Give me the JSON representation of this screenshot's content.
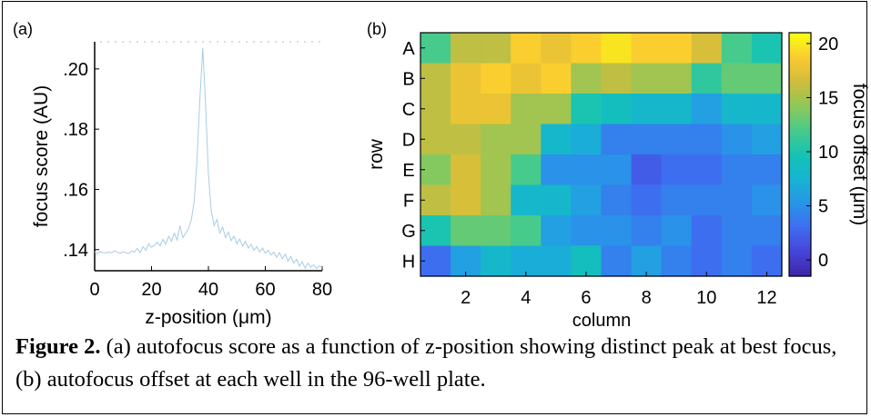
{
  "chart_data": [
    {
      "panel": "(a)",
      "type": "line",
      "xlabel": "z-position (μm)",
      "ylabel": "focus score (AU)",
      "xlim": [
        0,
        80
      ],
      "ylim": [
        0.133,
        0.209
      ],
      "xticks": [
        0,
        20,
        40,
        60,
        80
      ],
      "xtick_labels": [
        "0",
        "20",
        "40",
        "60",
        "80"
      ],
      "yticks": [
        0.14,
        0.16,
        0.18,
        0.2
      ],
      "ytick_labels": [
        ".14",
        ".16",
        ".18",
        ".20"
      ],
      "line_color": "#a9cce3",
      "x": [
        0,
        1,
        2,
        3,
        4,
        5,
        6,
        7,
        8,
        9,
        10,
        11,
        12,
        13,
        14,
        15,
        16,
        17,
        18,
        19,
        20,
        21,
        22,
        23,
        24,
        25,
        26,
        27,
        28,
        29,
        30,
        31,
        32,
        33,
        34,
        35,
        36,
        37,
        38,
        39,
        40,
        41,
        42,
        43,
        44,
        45,
        46,
        47,
        48,
        49,
        50,
        51,
        52,
        53,
        54,
        55,
        56,
        57,
        58,
        59,
        60,
        61,
        62,
        63,
        64,
        65,
        66,
        67,
        68,
        69,
        70,
        71,
        72,
        73,
        74,
        75,
        76,
        77,
        78,
        79,
        80
      ],
      "y": [
        0.1392,
        0.1387,
        0.1393,
        0.139,
        0.1389,
        0.1392,
        0.139,
        0.1396,
        0.1391,
        0.1388,
        0.1393,
        0.139,
        0.1387,
        0.1395,
        0.1392,
        0.1404,
        0.139,
        0.141,
        0.1398,
        0.142,
        0.1408,
        0.1414,
        0.1425,
        0.1413,
        0.1434,
        0.1418,
        0.1445,
        0.1428,
        0.1455,
        0.1432,
        0.148,
        0.144,
        0.1455,
        0.147,
        0.15,
        0.156,
        0.17,
        0.19,
        0.207,
        0.188,
        0.165,
        0.153,
        0.148,
        0.15,
        0.1455,
        0.1475,
        0.144,
        0.1458,
        0.143,
        0.1445,
        0.142,
        0.1435,
        0.1412,
        0.1428,
        0.1405,
        0.1418,
        0.1398,
        0.141,
        0.1392,
        0.1405,
        0.1388,
        0.1398,
        0.1382,
        0.1392,
        0.1375,
        0.139,
        0.137,
        0.1385,
        0.1362,
        0.1378,
        0.1355,
        0.1368,
        0.1345,
        0.136,
        0.1338,
        0.1355,
        0.1342,
        0.135,
        0.1338,
        0.1346,
        0.134
      ]
    },
    {
      "panel": "(b)",
      "type": "heatmap",
      "xlabel": "column",
      "ylabel": "row",
      "rows": [
        "A",
        "B",
        "C",
        "D",
        "E",
        "F",
        "G",
        "H"
      ],
      "columns": [
        1,
        2,
        3,
        4,
        5,
        6,
        7,
        8,
        9,
        10,
        11,
        12
      ],
      "xtick_labels": [
        "2",
        "4",
        "6",
        "8",
        "10",
        "12"
      ],
      "colorbar_label": "focus offset (μm)",
      "colorbar_range": [
        -1.5,
        21
      ],
      "colorbar_ticks": [
        0,
        5,
        10,
        15,
        20
      ],
      "colormap": "parula",
      "values": [
        [
          12,
          16,
          16,
          19,
          18,
          19,
          20,
          19,
          19,
          17,
          12,
          10
        ],
        [
          16,
          18,
          19,
          18,
          19,
          15,
          16,
          15,
          15,
          11,
          13,
          13
        ],
        [
          16,
          18,
          18,
          15,
          15,
          10,
          9,
          8,
          8,
          6,
          8,
          8
        ],
        [
          16,
          16,
          15,
          15,
          8,
          7,
          4,
          4,
          4,
          4,
          5,
          6
        ],
        [
          14,
          17,
          15,
          12,
          5,
          5,
          5,
          2,
          3,
          3,
          4,
          4
        ],
        [
          16,
          17,
          15,
          8,
          8,
          6,
          4,
          3,
          4,
          4,
          4,
          5
        ],
        [
          10,
          13,
          13,
          12,
          6,
          5,
          5,
          4,
          5,
          3,
          4,
          4
        ],
        [
          3,
          6,
          8,
          7,
          7,
          9,
          4,
          6,
          4,
          3,
          4,
          3
        ]
      ]
    }
  ],
  "caption": {
    "label": "Figure 2.",
    "text": " (a) autofocus score as a function of z-position showing distinct peak at best focus, (b) autofocus offset at each well in the 96-well plate."
  }
}
